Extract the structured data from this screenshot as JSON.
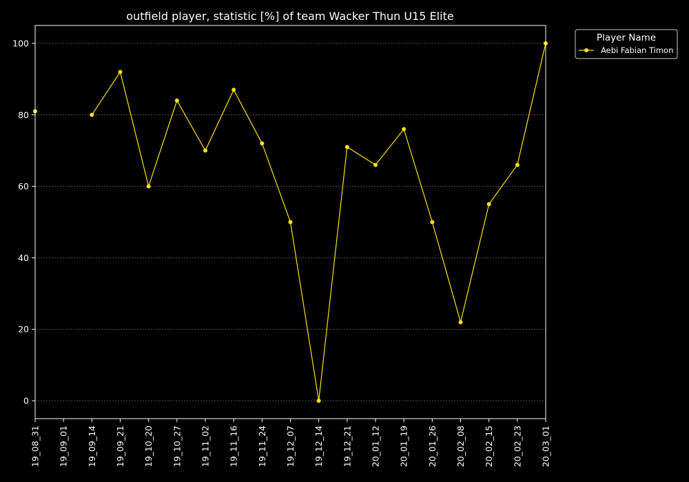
{
  "chart_data": {
    "type": "line",
    "title": "outfield player, statistic [%] of team Wacker Thun U15 Elite",
    "xlabel": "",
    "ylabel": "",
    "categories": [
      "19_08_31",
      "19_09_01",
      "19_09_14",
      "19_09_21",
      "19_10_20",
      "19_10_27",
      "19_11_02",
      "19_11_16",
      "19_11_24",
      "19_12_07",
      "19_12_14",
      "19_12_21",
      "20_01_12",
      "20_01_19",
      "20_01_26",
      "20_02_08",
      "20_02_15",
      "20_02_23",
      "20_03_01"
    ],
    "series": [
      {
        "name": "Aebi Fabian Timon",
        "color": "#FFE11A",
        "values": [
          81,
          null,
          80,
          92,
          60,
          84,
          70,
          87,
          72,
          50,
          0,
          71,
          66,
          76,
          50,
          22,
          55,
          66,
          100
        ]
      }
    ],
    "yticks": [
      0,
      20,
      40,
      60,
      80,
      100
    ],
    "ylim": [
      -5,
      105
    ],
    "grid": true,
    "legend": {
      "title": "Player Name",
      "position": "top-right outside"
    },
    "colors": {
      "background": "#000000",
      "axes": "#ffffff",
      "grid": "#888888"
    }
  }
}
